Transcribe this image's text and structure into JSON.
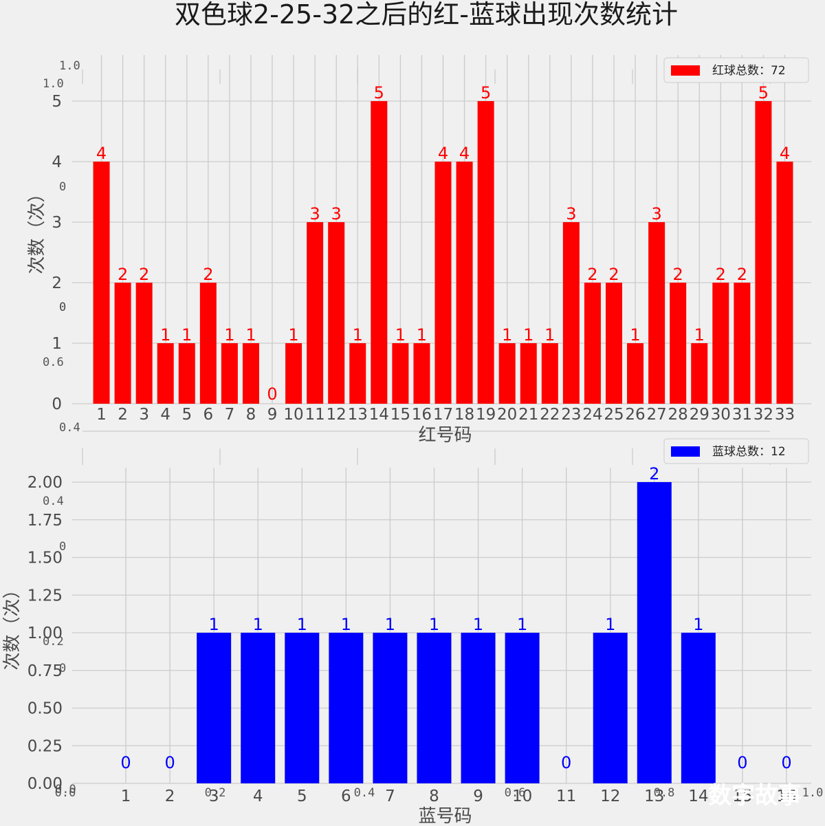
{
  "title": "双色球2-25-32之后的红-蓝球出现次数统计",
  "watermark": "数字故事",
  "chart_data": [
    {
      "type": "bar",
      "color": "#ff0000",
      "legend": "红球总数：72",
      "legend_position": "top-right",
      "xlabel": "红号码",
      "ylabel": "次数（次）",
      "ylim": [
        0,
        5.5
      ],
      "yticks": [
        "0",
        "1",
        "2",
        "3",
        "4",
        "5"
      ],
      "grid": true,
      "categories": [
        "1",
        "2",
        "3",
        "4",
        "5",
        "6",
        "7",
        "8",
        "9",
        "10",
        "11",
        "12",
        "13",
        "14",
        "15",
        "16",
        "17",
        "18",
        "19",
        "20",
        "21",
        "22",
        "23",
        "24",
        "25",
        "26",
        "27",
        "28",
        "29",
        "30",
        "31",
        "32",
        "33"
      ],
      "values": [
        4,
        2,
        2,
        1,
        1,
        2,
        1,
        1,
        0,
        1,
        3,
        3,
        1,
        5,
        1,
        1,
        4,
        4,
        5,
        1,
        1,
        1,
        3,
        2,
        2,
        1,
        3,
        2,
        1,
        2,
        2,
        5,
        4
      ]
    },
    {
      "type": "bar",
      "color": "#0000ff",
      "legend": "蓝球总数：12",
      "legend_position": "top-right",
      "xlabel": "蓝号码",
      "ylabel": "次数（次）",
      "ylim": [
        0,
        2.1
      ],
      "yticks": [
        "0.00",
        "0.25",
        "0.50",
        "0.75",
        "1.00",
        "1.25",
        "1.50",
        "1.75",
        "2.00"
      ],
      "grid": true,
      "categories": [
        "1",
        "2",
        "3",
        "4",
        "5",
        "6",
        "7",
        "8",
        "9",
        "10",
        "11",
        "12",
        "13",
        "14",
        "15",
        "16"
      ],
      "values": [
        0,
        0,
        1,
        1,
        1,
        1,
        1,
        1,
        1,
        1,
        0,
        1,
        2,
        1,
        0,
        0
      ]
    }
  ],
  "background_axis": {
    "yticks": [
      "1.0",
      "1.0",
      "0",
      "0",
      "0",
      "0.6",
      "0.4",
      "0.4",
      "0",
      "0.2",
      "0",
      "0.0"
    ],
    "xticks": [
      "0.0",
      "0.2",
      "0.4",
      "0.6",
      "0.8",
      "1.0"
    ]
  }
}
